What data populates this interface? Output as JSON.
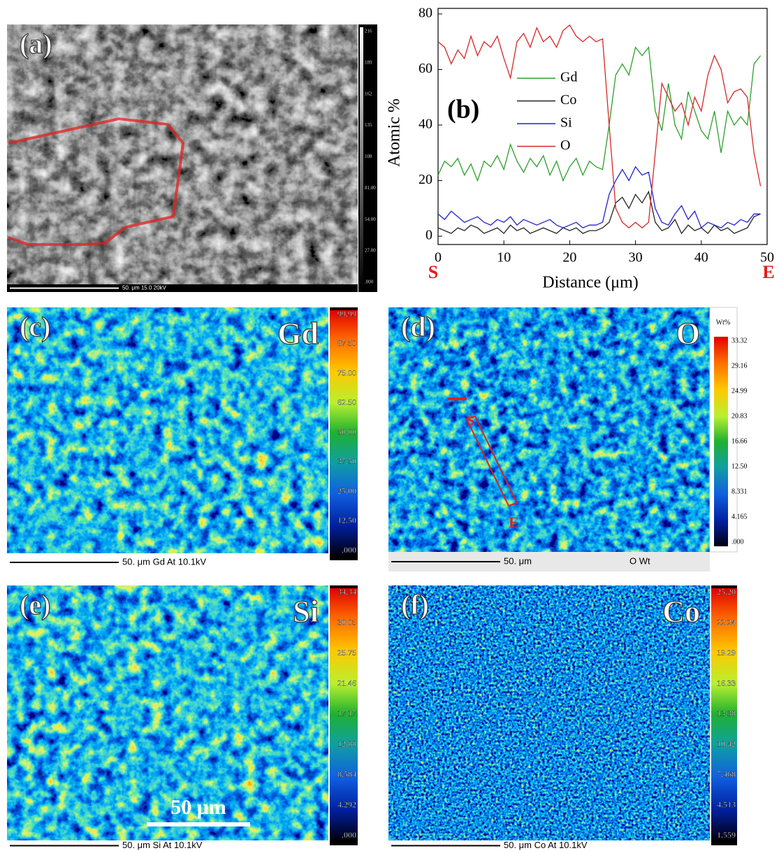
{
  "chart_data": {
    "type": "line",
    "panel_label": "(b)",
    "x_label": "Distance (μm)",
    "y_label": "Atomic %",
    "start_label": "S",
    "end_label": "E",
    "x": [
      0,
      1,
      2,
      3,
      4,
      5,
      6,
      7,
      8,
      9,
      10,
      11,
      12,
      13,
      14,
      15,
      16,
      17,
      18,
      19,
      20,
      21,
      22,
      23,
      24,
      25,
      26,
      27,
      28,
      29,
      30,
      31,
      32,
      33,
      34,
      35,
      36,
      37,
      38,
      39,
      40,
      41,
      42,
      43,
      44,
      45,
      46,
      47,
      48,
      49
    ],
    "xlim": [
      0,
      50
    ],
    "xticks": [
      0,
      10,
      20,
      30,
      40,
      50
    ],
    "ylim": [
      -3,
      82
    ],
    "yticks": [
      0,
      20,
      40,
      60,
      80
    ],
    "legend": "upper center",
    "series": [
      {
        "name": "Gd",
        "color": "#2ca02c",
        "values": [
          22,
          27,
          25,
          28,
          22,
          26,
          20,
          27,
          25,
          29,
          24,
          33,
          27,
          23,
          28,
          25,
          29,
          22,
          27,
          20,
          25,
          28,
          22,
          27,
          25,
          24,
          40,
          58,
          62,
          58,
          68,
          65,
          68,
          45,
          38,
          55,
          40,
          35,
          52,
          45,
          38,
          35,
          45,
          30,
          45,
          40,
          43,
          40,
          62,
          65
        ]
      },
      {
        "name": "Co",
        "color": "#222222",
        "values": [
          3,
          2,
          1,
          3,
          2,
          4,
          3,
          1,
          2,
          3,
          1,
          4,
          2,
          3,
          1,
          2,
          3,
          2,
          1,
          3,
          2,
          3,
          1,
          2,
          2,
          3,
          5,
          12,
          14,
          10,
          15,
          12,
          16,
          5,
          2,
          3,
          6,
          1,
          4,
          2,
          3,
          1,
          4,
          2,
          3,
          1,
          2,
          3,
          7,
          8
        ]
      },
      {
        "name": "Si",
        "color": "#2222cc",
        "values": [
          8,
          6,
          9,
          7,
          5,
          6,
          7,
          5,
          4,
          6,
          5,
          7,
          4,
          6,
          5,
          4,
          5,
          6,
          4,
          3,
          4,
          5,
          3,
          4,
          4,
          5,
          15,
          20,
          24,
          20,
          25,
          22,
          23,
          10,
          5,
          4,
          8,
          11,
          6,
          9,
          3,
          5,
          4,
          3,
          5,
          4,
          6,
          5,
          8,
          8
        ]
      },
      {
        "name": "O",
        "color": "#d62728",
        "values": [
          70,
          68,
          62,
          67,
          64,
          72,
          65,
          70,
          68,
          72,
          64,
          57,
          70,
          73,
          68,
          75,
          70,
          72,
          68,
          74,
          76,
          72,
          70,
          72,
          70,
          71,
          40,
          10,
          5,
          3,
          5,
          3,
          5,
          30,
          55,
          50,
          45,
          48,
          40,
          50,
          45,
          58,
          65,
          60,
          48,
          52,
          53,
          50,
          30,
          18
        ]
      }
    ]
  },
  "panels": {
    "a": {
      "label": "(a)",
      "colorbar_ticks": [
        "216",
        "189",
        "162",
        "135",
        "108",
        "81.00",
        "54.00",
        "27.00",
        ".000"
      ],
      "footer": "50. μm  15.0  20kV"
    },
    "c": {
      "label": "(c)",
      "element": "Gd",
      "colorbar_ticks": [
        "99.99",
        "87.50",
        "75.00",
        "62.50",
        "50.00",
        "37.50",
        "25.00",
        "12.50",
        ".000"
      ],
      "footer": "50. μm  Gd At  10.1kV"
    },
    "d": {
      "label": "(d)",
      "element": "O",
      "colorbar_title": "Wt%",
      "colorbar_ticks": [
        "33.32",
        "29.16",
        "24.99",
        "20.83",
        "16.66",
        "12.50",
        "8.331",
        "4.165",
        ".000"
      ],
      "footer": "50. μm",
      "footer_right": "O  Wt",
      "start": "S",
      "end": "E"
    },
    "e": {
      "label": "(e)",
      "element": "Si",
      "colorbar_ticks": [
        "34.34",
        "30.05",
        "25.75",
        "21.46",
        "17.17",
        "12.88",
        "8.584",
        "4.292",
        ".000"
      ],
      "footer": "50. μm  Si At  10.1kV",
      "scale_bar": "50 μm"
    },
    "f": {
      "label": "(f)",
      "element": "Co",
      "colorbar_ticks": [
        "25.20",
        "22.24",
        "19.29",
        "16.33",
        "13.38",
        "10.42",
        "7.468",
        "4.513",
        "1.559"
      ],
      "footer": "50. μm  Co At  10.1kV"
    }
  }
}
